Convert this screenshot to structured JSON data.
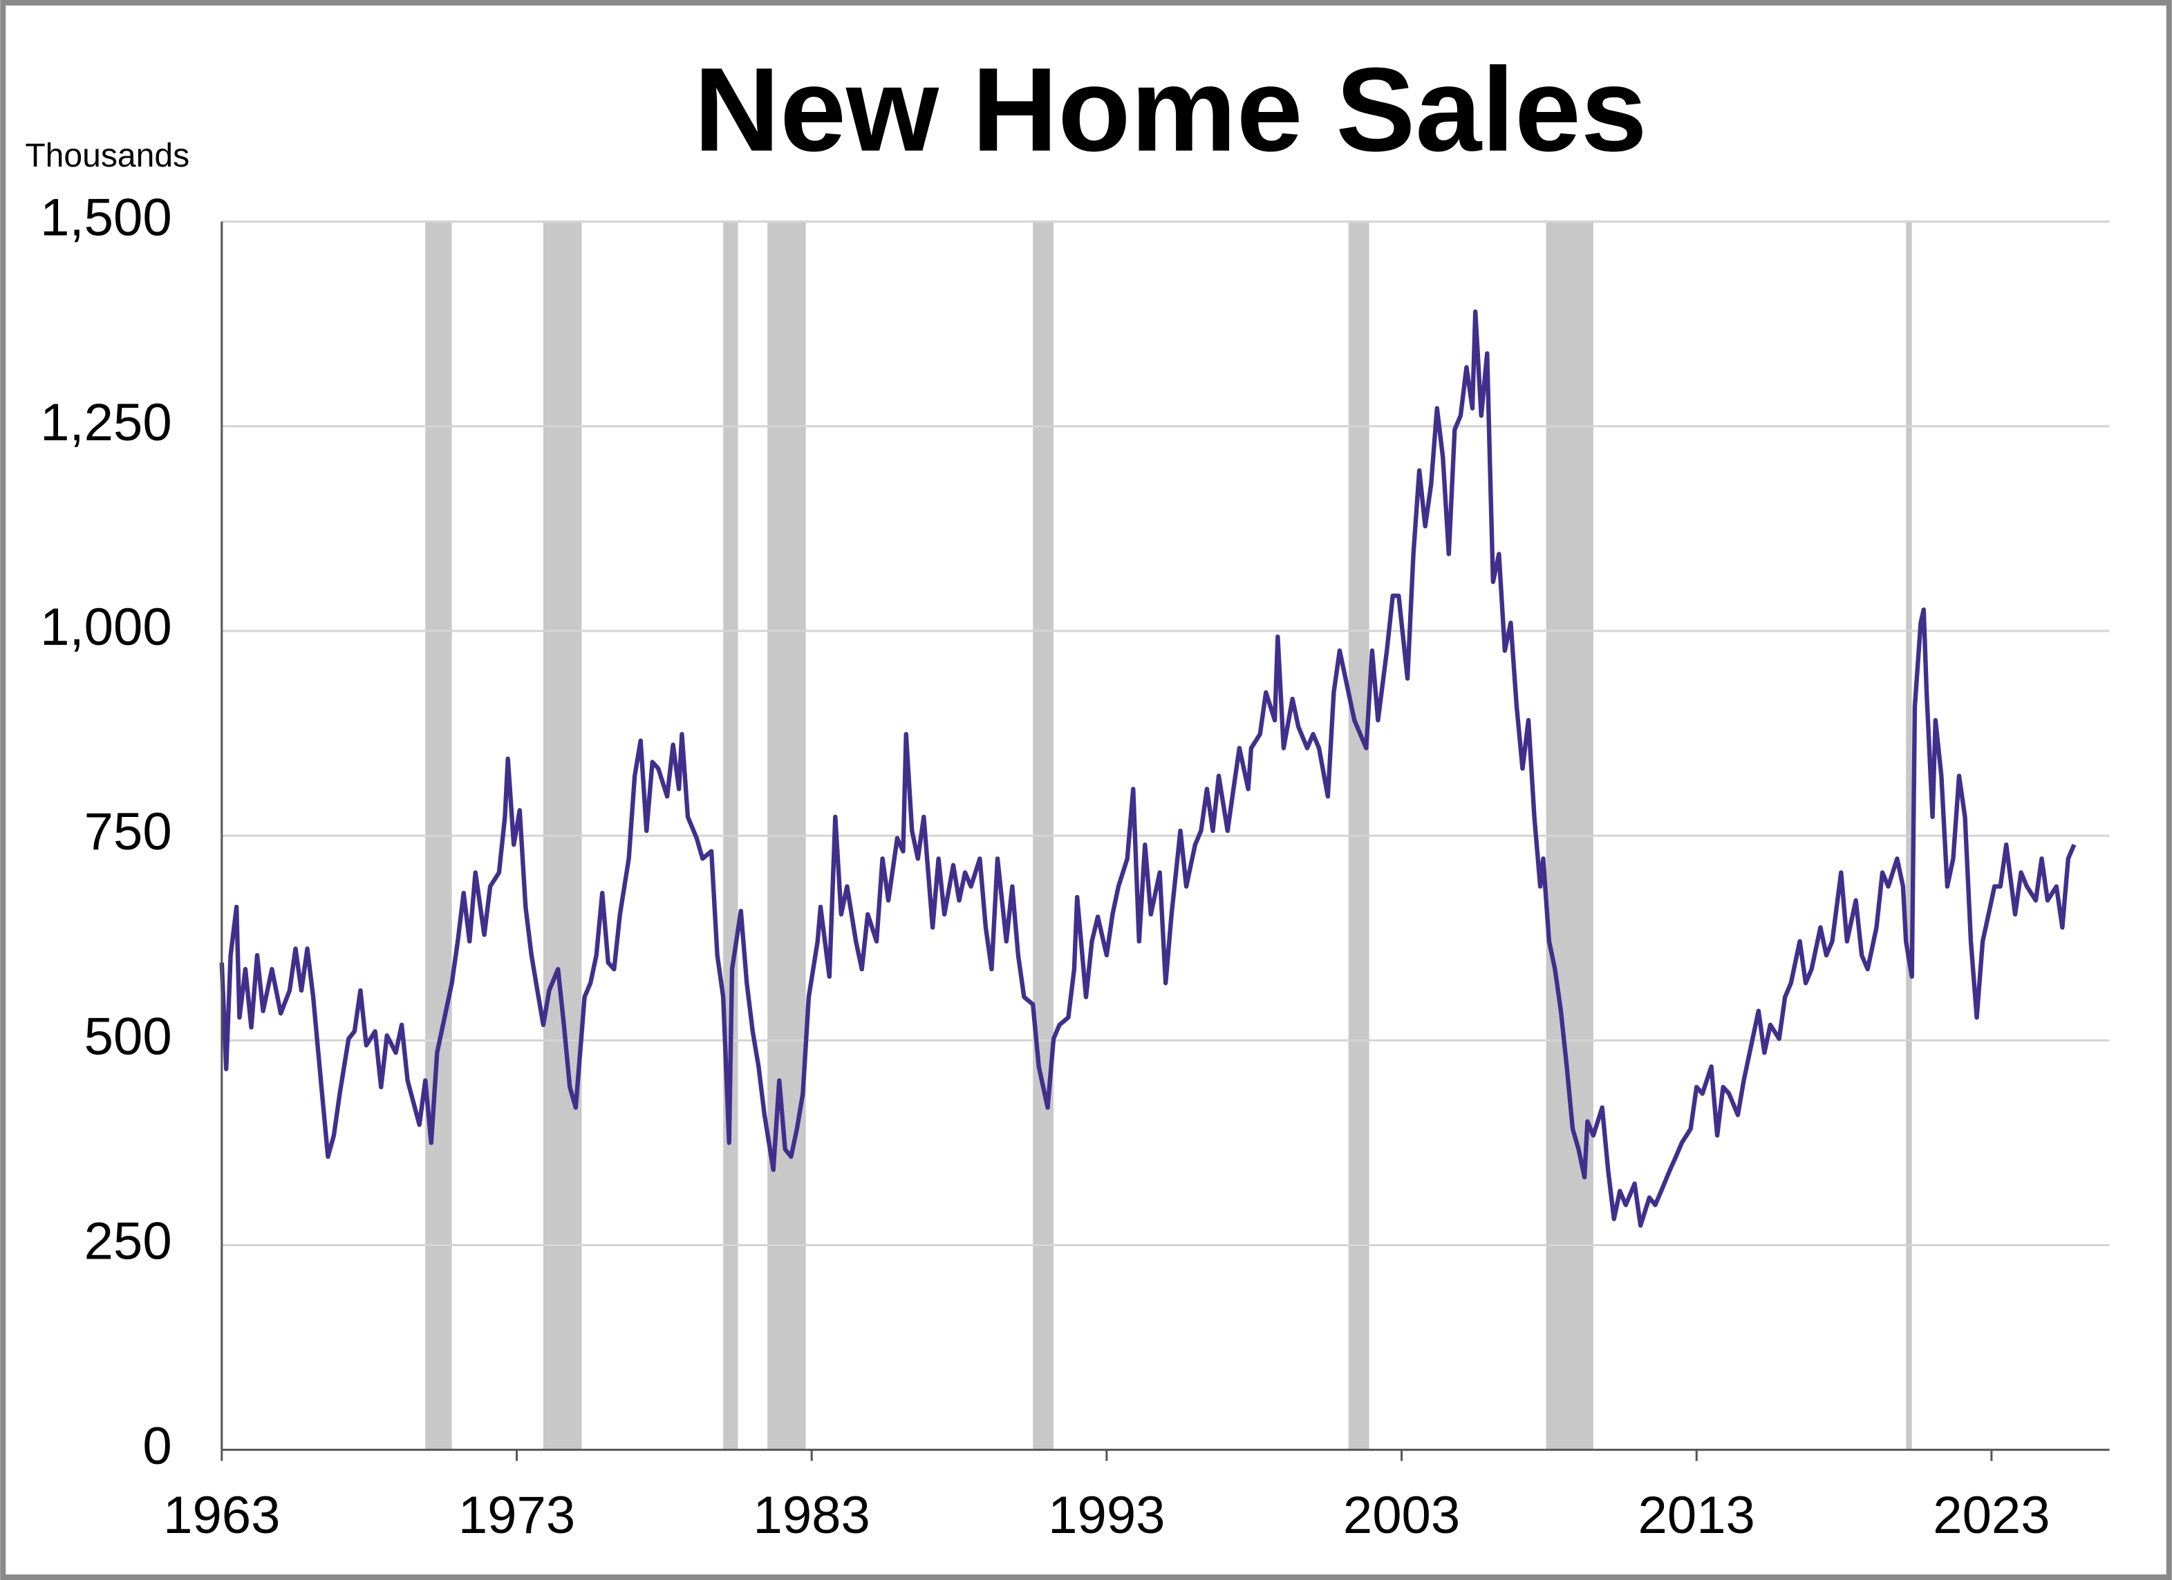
{
  "chart_data": {
    "type": "line",
    "title": "New Home Sales",
    "y_label": "Thousands",
    "xlim": [
      1963,
      2027
    ],
    "xticks": [
      1963,
      1973,
      1983,
      1993,
      2003,
      2013,
      2023
    ],
    "ylim": [
      0,
      1500
    ],
    "yticks": [
      0,
      250,
      500,
      750,
      {
        "value": 1000,
        "label": "1,000"
      },
      {
        "value": 1250,
        "label": "1,250"
      },
      {
        "value": 1500,
        "label": "1,500"
      }
    ],
    "grid": true,
    "recession_color": "#c8c8c8",
    "recessions": [
      [
        1969.9,
        1970.8
      ],
      [
        1973.9,
        1975.2
      ],
      [
        1980.0,
        1980.5
      ],
      [
        1981.5,
        1982.8
      ],
      [
        1990.5,
        1991.2
      ],
      [
        2001.2,
        2001.9
      ],
      [
        2007.9,
        2009.5
      ],
      [
        2020.1,
        2020.3
      ]
    ],
    "x": [
      1963.0,
      1963.15,
      1963.3,
      1963.5,
      1963.6,
      1963.8,
      1964.0,
      1964.2,
      1964.4,
      1964.7,
      1965.0,
      1965.3,
      1965.5,
      1965.7,
      1965.9,
      1966.1,
      1966.4,
      1966.6,
      1966.8,
      1967.0,
      1967.3,
      1967.5,
      1967.7,
      1967.9,
      1968.2,
      1968.4,
      1968.6,
      1968.9,
      1969.1,
      1969.3,
      1969.7,
      1969.9,
      1970.1,
      1970.3,
      1970.6,
      1970.8,
      1971.0,
      1971.2,
      1971.4,
      1971.6,
      1971.9,
      1972.1,
      1972.4,
      1972.6,
      1972.7,
      1972.9,
      1973.1,
      1973.3,
      1973.5,
      1973.7,
      1973.9,
      1974.1,
      1974.4,
      1974.6,
      1974.8,
      1975.0,
      1975.3,
      1975.5,
      1975.7,
      1975.9,
      1976.1,
      1976.3,
      1976.5,
      1976.8,
      1977.0,
      1977.2,
      1977.4,
      1977.6,
      1977.8,
      1978.1,
      1978.3,
      1978.5,
      1978.6,
      1978.8,
      1979.1,
      1979.3,
      1979.6,
      1979.8,
      1980.0,
      1980.2,
      1980.3,
      1980.6,
      1980.8,
      1981.0,
      1981.2,
      1981.4,
      1981.7,
      1981.9,
      1982.1,
      1982.3,
      1982.5,
      1982.7,
      1982.9,
      1983.2,
      1983.3,
      1983.6,
      1983.8,
      1984.0,
      1984.2,
      1984.5,
      1984.7,
      1984.9,
      1985.2,
      1985.4,
      1985.6,
      1985.9,
      1986.1,
      1986.2,
      1986.4,
      1986.6,
      1986.8,
      1987.1,
      1987.3,
      1987.5,
      1987.8,
      1988.0,
      1988.2,
      1988.4,
      1988.7,
      1988.9,
      1989.1,
      1989.3,
      1989.6,
      1989.8,
      1990.0,
      1990.2,
      1990.5,
      1990.7,
      1991.0,
      1991.2,
      1991.4,
      1991.7,
      1991.9,
      1992.0,
      1992.3,
      1992.5,
      1992.7,
      1993.0,
      1993.2,
      1993.4,
      1993.7,
      1993.9,
      1994.1,
      1994.3,
      1994.5,
      1994.8,
      1995.0,
      1995.2,
      1995.5,
      1995.7,
      1996.0,
      1996.2,
      1996.4,
      1996.6,
      1996.8,
      1997.1,
      1997.3,
      1997.5,
      1997.8,
      1997.9,
      1998.2,
      1998.4,
      1998.7,
      1998.8,
      1999.0,
      1999.3,
      1999.5,
      1999.8,
      2000.0,
      2000.2,
      2000.5,
      2000.7,
      2000.9,
      2001.2,
      2001.4,
      2001.6,
      2001.8,
      2002.0,
      2002.2,
      2002.5,
      2002.7,
      2002.9,
      2003.2,
      2003.4,
      2003.6,
      2003.8,
      2004.0,
      2004.2,
      2004.4,
      2004.6,
      2004.8,
      2005.0,
      2005.2,
      2005.4,
      2005.5,
      2005.7,
      2005.9,
      2006.0,
      2006.1,
      2006.3,
      2006.5,
      2006.7,
      2006.9,
      2007.1,
      2007.3,
      2007.5,
      2007.7,
      2007.8,
      2008.0,
      2008.2,
      2008.4,
      2008.6,
      2008.8,
      2009.0,
      2009.2,
      2009.3,
      2009.5,
      2009.8,
      2010.0,
      2010.2,
      2010.4,
      2010.6,
      2010.9,
      2011.1,
      2011.4,
      2011.6,
      2011.8,
      2012.1,
      2012.3,
      2012.5,
      2012.8,
      2013.0,
      2013.2,
      2013.5,
      2013.7,
      2013.9,
      2014.1,
      2014.4,
      2014.6,
      2014.8,
      2015.1,
      2015.3,
      2015.5,
      2015.8,
      2016.0,
      2016.2,
      2016.5,
      2016.7,
      2016.9,
      2017.2,
      2017.4,
      2017.6,
      2017.9,
      2018.1,
      2018.4,
      2018.6,
      2018.8,
      2019.1,
      2019.3,
      2019.5,
      2019.8,
      2020.0,
      2020.1,
      2020.3,
      2020.4,
      2020.6,
      2020.7,
      2020.8,
      2021.0,
      2021.1,
      2021.3,
      2021.5,
      2021.7,
      2021.9,
      2022.1,
      2022.3,
      2022.5,
      2022.7,
      2022.9,
      2023.1,
      2023.3,
      2023.5,
      2023.8,
      2024.0,
      2024.2,
      2024.5,
      2024.7,
      2024.9,
      2025.2,
      2025.4,
      2025.6,
      2025.8
    ],
    "series": [
      {
        "name": "New Home Sales",
        "color": "#40308c",
        "values": [
          595,
          465,
          604,
          663,
          528,
          587,
          516,
          604,
          536,
          587,
          533,
          561,
          612,
          561,
          612,
          553,
          435,
          358,
          384,
          435,
          502,
          511,
          561,
          494,
          511,
          443,
          506,
          485,
          519,
          451,
          397,
          451,
          375,
          485,
          536,
          570,
          621,
          680,
          621,
          705,
          629,
          688,
          705,
          773,
          844,
          739,
          781,
          663,
          604,
          561,
          519,
          561,
          587,
          519,
          443,
          418,
          553,
          570,
          604,
          680,
          595,
          587,
          654,
          722,
          823,
          866,
          756,
          840,
          832,
          798,
          861,
          807,
          874,
          773,
          747,
          722,
          731,
          604,
          553,
          375,
          587,
          658,
          570,
          511,
          468,
          409,
          342,
          451,
          367,
          358,
          392,
          435,
          553,
          621,
          663,
          578,
          773,
          654,
          688,
          621,
          587,
          654,
          621,
          722,
          671,
          747,
          731,
          874,
          756,
          722,
          773,
          638,
          722,
          654,
          714,
          671,
          705,
          688,
          722,
          638,
          587,
          722,
          621,
          688,
          604,
          553,
          544,
          468,
          418,
          502,
          519,
          528,
          587,
          675,
          553,
          621,
          651,
          604,
          654,
          688,
          722,
          807,
          621,
          739,
          654,
          705,
          570,
          654,
          756,
          688,
          739,
          756,
          807,
          756,
          823,
          756,
          807,
          857,
          807,
          857,
          874,
          925,
          891,
          993,
          857,
          917,
          883,
          857,
          874,
          857,
          798,
          925,
          976,
          925,
          891,
          874,
          857,
          976,
          891,
          976,
          1043,
          1043,
          942,
          1094,
          1196,
          1128,
          1179,
          1272,
          1212,
          1094,
          1246,
          1263,
          1322,
          1272,
          1390,
          1263,
          1339,
          1196,
          1060,
          1094,
          976,
          1010,
          908,
          832,
          891,
          773,
          688,
          722,
          621,
          587,
          536,
          468,
          392,
          367,
          333,
          401,
          384,
          418,
          342,
          282,
          316,
          299,
          325,
          274,
          308,
          299,
          316,
          342,
          358,
          375,
          392,
          443,
          435,
          468,
          384,
          443,
          435,
          409,
          451,
          485,
          536,
          485,
          519,
          502,
          553,
          570,
          621,
          570,
          587,
          638,
          604,
          621,
          705,
          621,
          671,
          604,
          587,
          638,
          705,
          688,
          722,
          688,
          621,
          578,
          908,
          1010,
          1026,
          925,
          773,
          891,
          823,
          688,
          722,
          823,
          773,
          621,
          528,
          621,
          654,
          688,
          688,
          739,
          654,
          705,
          688,
          671,
          722,
          671,
          688,
          638,
          722,
          739
        ]
      }
    ]
  }
}
